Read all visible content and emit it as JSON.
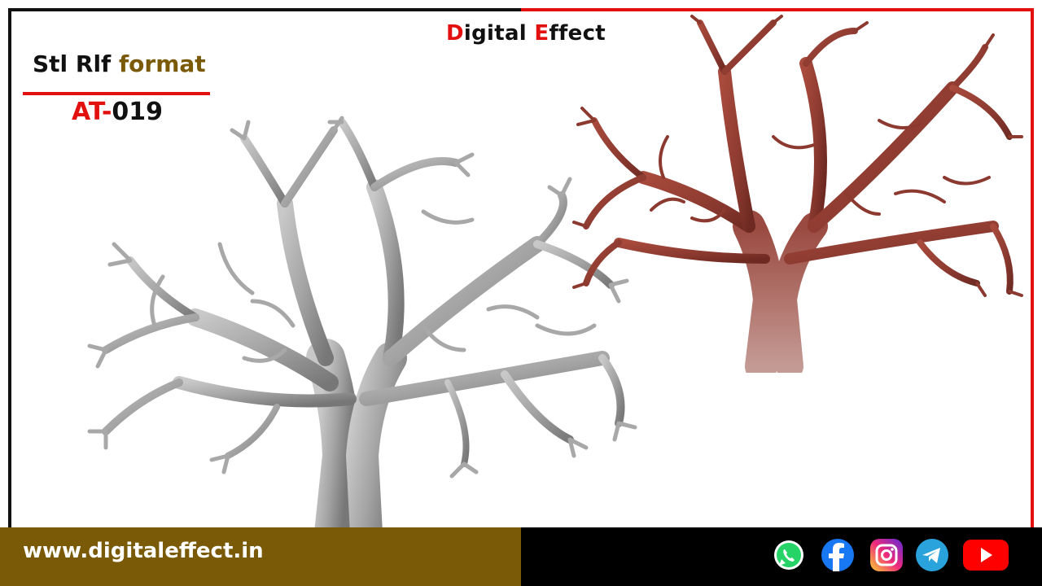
{
  "brand": {
    "first_letter": "D",
    "first_rest": "igital ",
    "second_letter": "E",
    "second_rest": "ffect"
  },
  "product": {
    "format_prefix": "Stl Rlf ",
    "format_suffix": "format",
    "code_prefix": "AT-",
    "code_suffix": "019"
  },
  "footer": {
    "url": "www.digitaleffect.in"
  },
  "social_icons": [
    "whatsapp-icon",
    "facebook-icon",
    "instagram-icon",
    "telegram-icon",
    "youtube-icon"
  ],
  "colors": {
    "accent_red": "#e31010",
    "accent_brown": "#7a5a06",
    "silver_tree": "#9a9a9a",
    "copper_tree": "#8c3a30"
  }
}
